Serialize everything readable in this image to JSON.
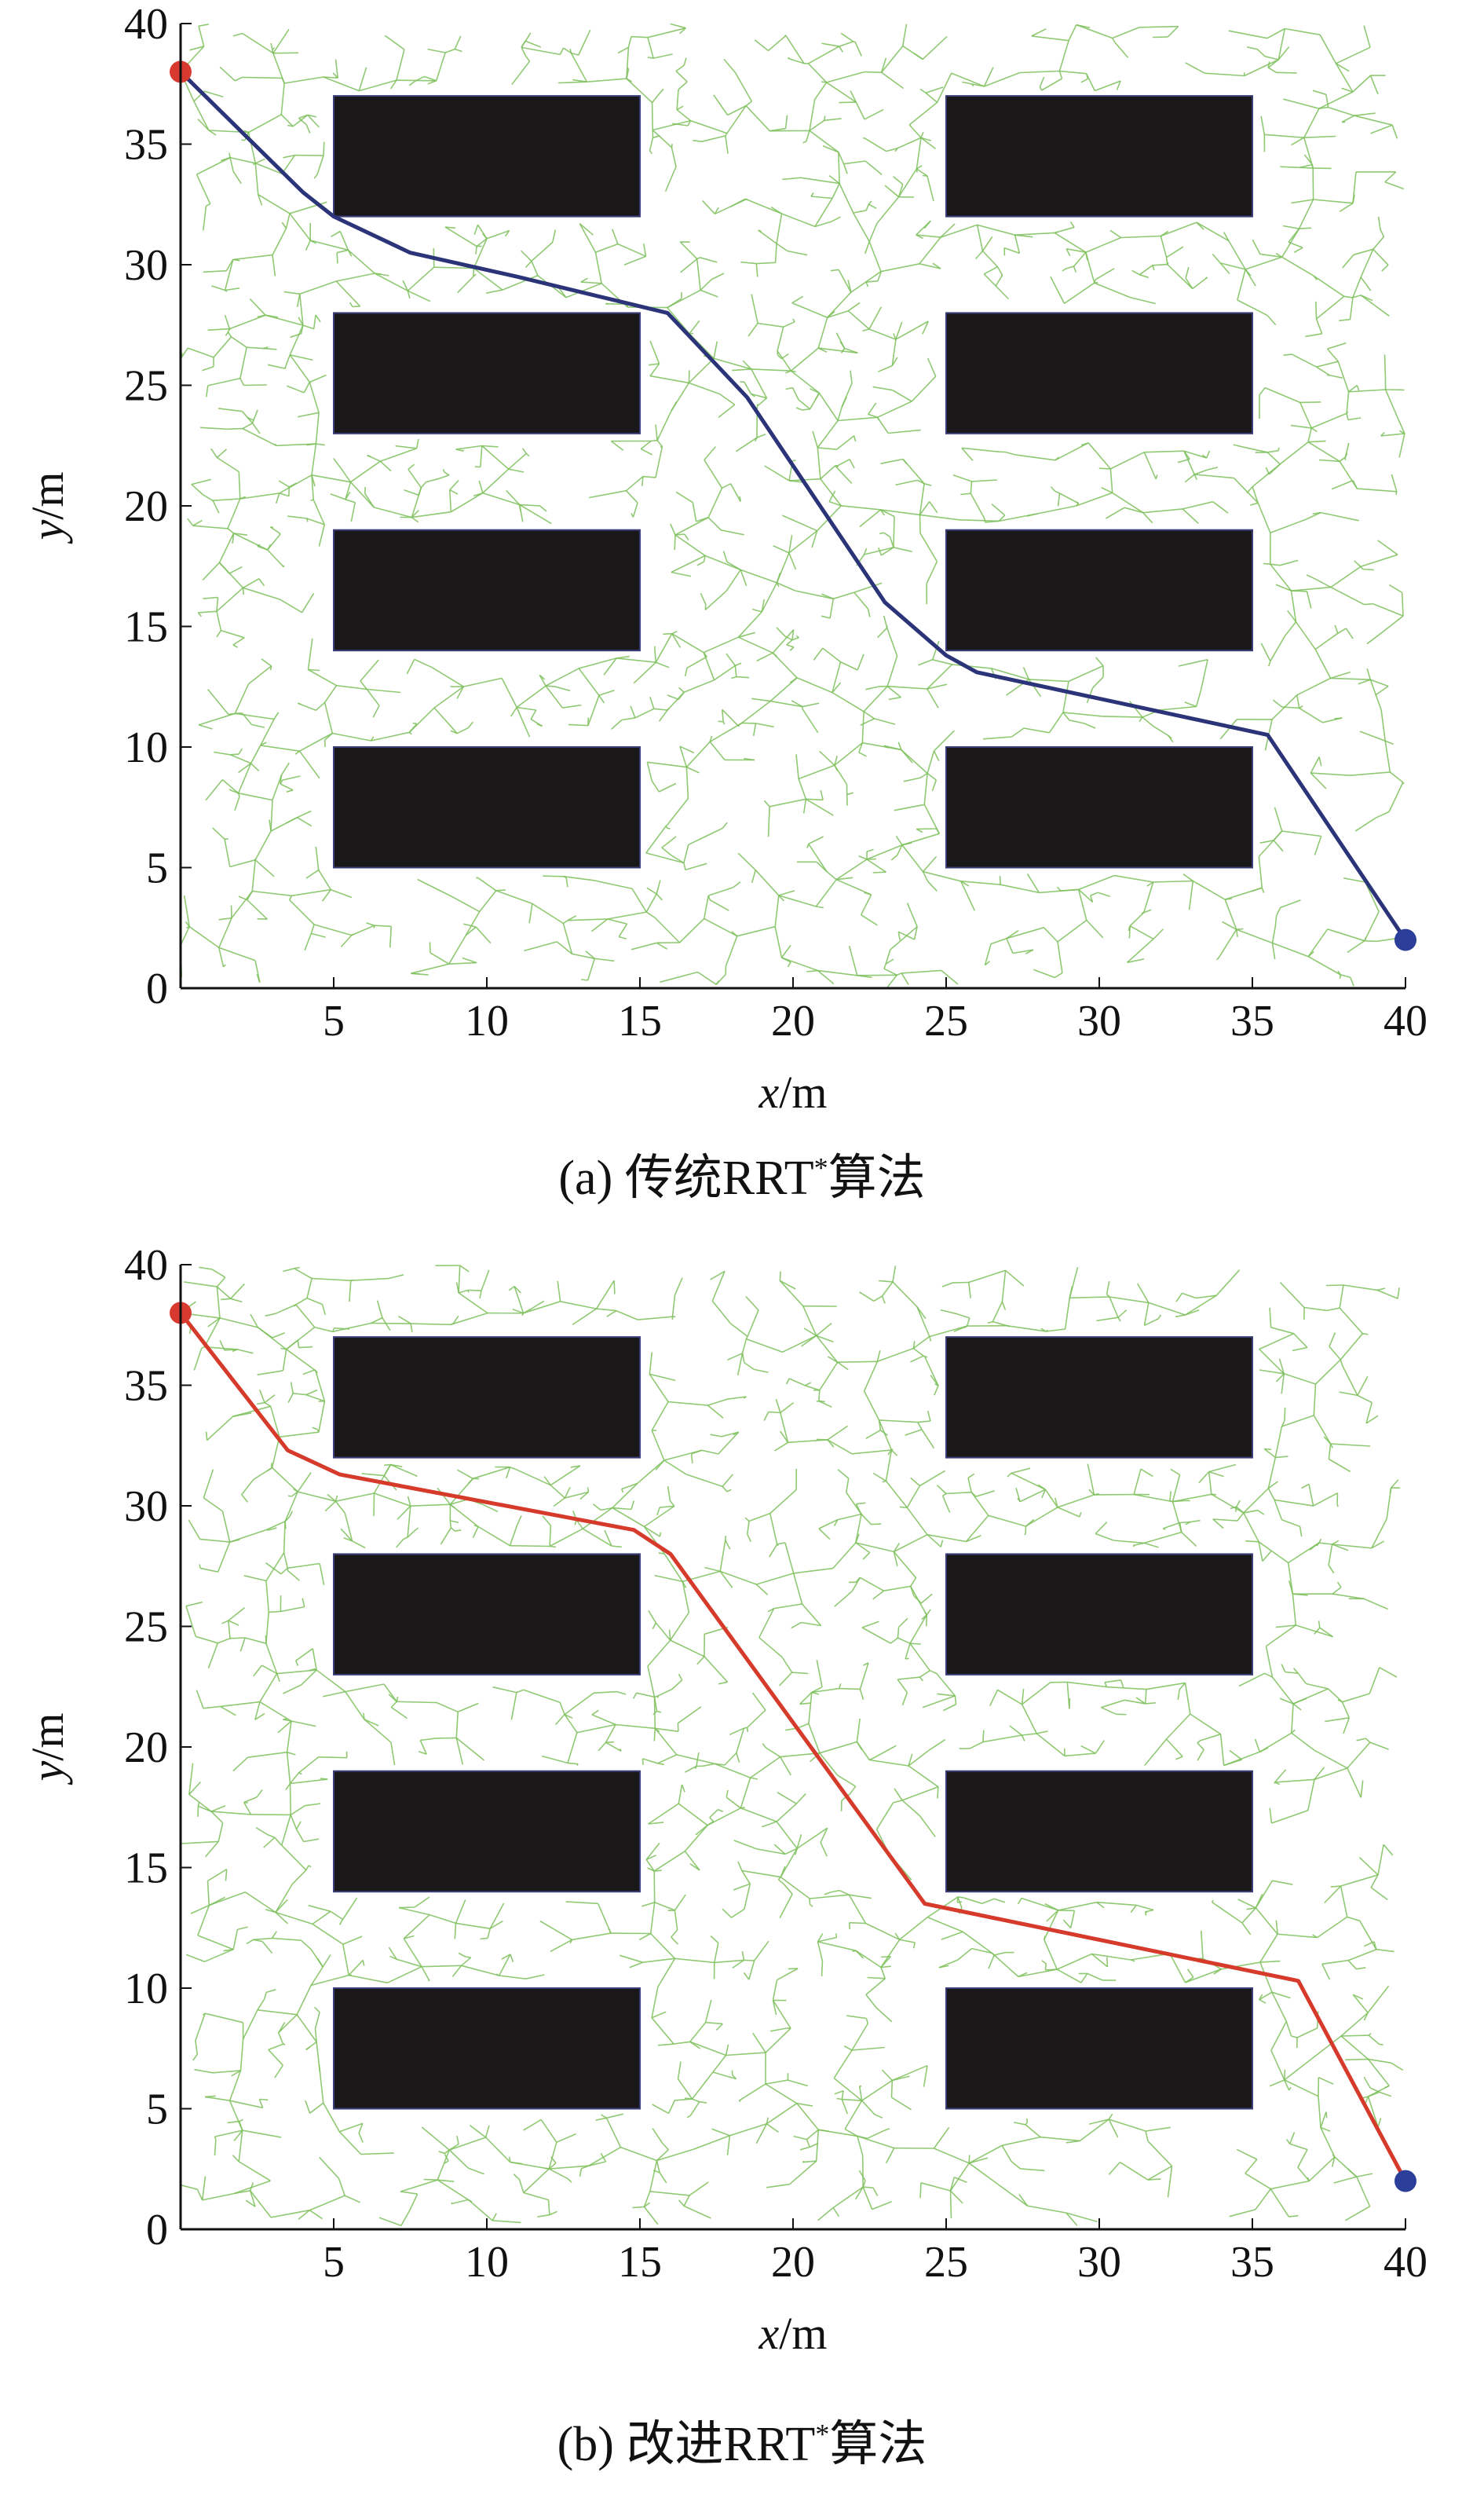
{
  "chart_data": [
    {
      "type": "path-planning",
      "caption": {
        "prefix": "(a) 传统RRT",
        "sup": "*",
        "suffix": "算法"
      },
      "xlabel": {
        "var": "x",
        "unit": "/m"
      },
      "ylabel": {
        "var": "y",
        "unit": "/m"
      },
      "xlim": [
        0,
        40
      ],
      "ylim": [
        0,
        40
      ],
      "xticks": [
        5,
        10,
        15,
        20,
        25,
        30,
        35,
        40
      ],
      "yticks": [
        0,
        5,
        10,
        15,
        20,
        25,
        30,
        35,
        40
      ],
      "start": [
        0,
        38
      ],
      "goal": [
        40,
        2
      ],
      "start_color": "#d93a30",
      "goal_color": "#2b3f9a",
      "path_color": "#2b3478",
      "tree_color": "#7cc05a",
      "obstacle_color": "#1a1718",
      "obstacles": [
        [
          5,
          32,
          15,
          37
        ],
        [
          25,
          32,
          35,
          37
        ],
        [
          5,
          23,
          15,
          28
        ],
        [
          25,
          23,
          35,
          28
        ],
        [
          5,
          14,
          15,
          19
        ],
        [
          25,
          14,
          35,
          19
        ],
        [
          5,
          5,
          15,
          10
        ],
        [
          25,
          5,
          35,
          10
        ]
      ],
      "path": [
        [
          0,
          38
        ],
        [
          4,
          33
        ],
        [
          5,
          32
        ],
        [
          7.5,
          30.5
        ],
        [
          11,
          29.5
        ],
        [
          15.9,
          28
        ],
        [
          18.5,
          24.5
        ],
        [
          23,
          16
        ],
        [
          25,
          13.8
        ],
        [
          26,
          13.1
        ],
        [
          35.5,
          10.5
        ],
        [
          40,
          2
        ]
      ],
      "tree_seed": 11
    },
    {
      "type": "path-planning",
      "caption": {
        "prefix": "(b) 改进RRT",
        "sup": "*",
        "suffix": "算法"
      },
      "xlabel": {
        "var": "x",
        "unit": "/m"
      },
      "ylabel": {
        "var": "y",
        "unit": "/m"
      },
      "xlim": [
        0,
        40
      ],
      "ylim": [
        0,
        40
      ],
      "xticks": [
        5,
        10,
        15,
        20,
        25,
        30,
        35,
        40
      ],
      "yticks": [
        0,
        5,
        10,
        15,
        20,
        25,
        30,
        35,
        40
      ],
      "start": [
        0,
        38
      ],
      "goal": [
        40,
        2
      ],
      "start_color": "#d93a30",
      "goal_color": "#2b3f9a",
      "path_color": "#d63a2a",
      "tree_color": "#7cc05a",
      "obstacle_color": "#1a1718",
      "obstacles": [
        [
          5,
          32,
          15,
          37
        ],
        [
          25,
          32,
          35,
          37
        ],
        [
          5,
          23,
          15,
          28
        ],
        [
          25,
          23,
          35,
          28
        ],
        [
          5,
          14,
          15,
          19
        ],
        [
          25,
          14,
          35,
          19
        ],
        [
          5,
          5,
          15,
          10
        ],
        [
          25,
          5,
          35,
          10
        ]
      ],
      "path": [
        [
          0,
          38
        ],
        [
          3.5,
          32.3
        ],
        [
          5.2,
          31.3
        ],
        [
          14.8,
          29
        ],
        [
          16,
          28
        ],
        [
          24.3,
          13.5
        ],
        [
          36.5,
          10.3
        ],
        [
          40,
          2
        ]
      ],
      "tree_seed": 29
    }
  ]
}
